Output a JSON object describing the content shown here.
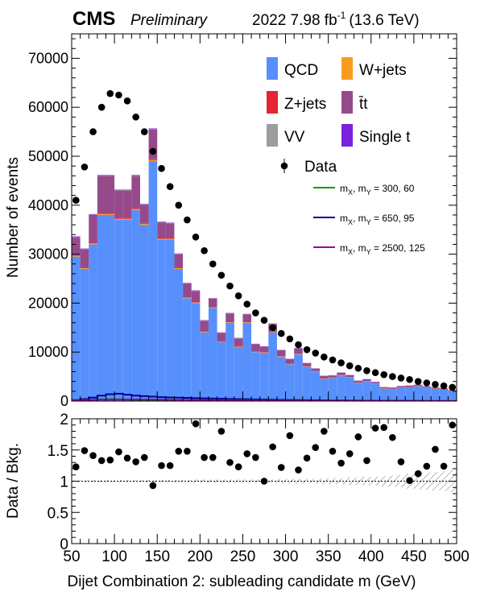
{
  "header": {
    "experiment": "CMS",
    "status": "Preliminary",
    "lumi_prefix": "2022 7.98 fb",
    "lumi_exp": "-1",
    "energy": "(13.6 TeV)"
  },
  "colors": {
    "QCD": "#5790fc",
    "W+jets": "#f89c20",
    "Z+jets": "#e42536",
    "ttbar": "#964a8b",
    "VV": "#9c9ca1",
    "Single t": "#7a21dd",
    "sig1": "#00a000",
    "sig2": "#000099",
    "sig3": "#990099",
    "data": "#000000"
  },
  "chart_data": [
    {
      "type": "bar",
      "stacked": true,
      "xlabel": "Dijet Combination 2: subleading candidate m (GeV)",
      "ylabel": "Number of events",
      "xlim": [
        50,
        500
      ],
      "ylim": [
        0,
        75000
      ],
      "xticks": [
        "50",
        "100",
        "150",
        "200",
        "250",
        "300",
        "350",
        "400",
        "450",
        "500"
      ],
      "yticks": [
        "0",
        "10000",
        "20000",
        "30000",
        "40000",
        "50000",
        "60000",
        "70000"
      ],
      "bin_width": 10,
      "bin_edges_start": [
        50,
        60,
        70,
        80,
        90,
        100,
        110,
        120,
        130,
        140,
        150,
        160,
        170,
        180,
        190,
        200,
        210,
        220,
        230,
        240,
        250,
        260,
        270,
        280,
        290,
        300,
        310,
        320,
        330,
        340,
        350,
        360,
        370,
        380,
        390,
        400,
        410,
        420,
        430,
        440,
        450,
        460,
        470,
        480,
        490
      ],
      "series": [
        {
          "name": "QCD",
          "values": [
            29500,
            27000,
            32000,
            38000,
            38000,
            37000,
            37000,
            39000,
            36000,
            49000,
            33000,
            33000,
            27000,
            21000,
            20000,
            14000,
            19000,
            12000,
            16000,
            11000,
            16000,
            10000,
            9800,
            14000,
            9000,
            7500,
            9500,
            7000,
            6000,
            4500,
            4700,
            5200,
            4800,
            3700,
            4000,
            3500,
            2500,
            2400,
            2700,
            2800,
            3000,
            2700,
            2500,
            2300,
            2000
          ]
        },
        {
          "name": "W+jets",
          "values": [
            150,
            150,
            200,
            200,
            200,
            200,
            200,
            200,
            200,
            200,
            150,
            150,
            150,
            150,
            100,
            100,
            100,
            100,
            100,
            100,
            100,
            100,
            100,
            80,
            80,
            80,
            80,
            60,
            60,
            60,
            60,
            50,
            50,
            50,
            50,
            40,
            40,
            40,
            40,
            40,
            30,
            30,
            30,
            30,
            30
          ]
        },
        {
          "name": "Z+jets",
          "values": [
            150,
            150,
            200,
            200,
            200,
            200,
            200,
            200,
            200,
            200,
            150,
            150,
            150,
            150,
            100,
            100,
            100,
            100,
            100,
            100,
            100,
            100,
            100,
            80,
            80,
            80,
            80,
            60,
            60,
            60,
            60,
            50,
            50,
            50,
            50,
            40,
            40,
            40,
            40,
            40,
            30,
            30,
            30,
            30,
            30
          ]
        },
        {
          "name": "t̄t",
          "values": [
            3700,
            3700,
            5600,
            7600,
            7600,
            5600,
            5600,
            6600,
            3700,
            6100,
            3200,
            3000,
            2700,
            2700,
            2300,
            2200,
            1700,
            1700,
            1700,
            1600,
            1500,
            1400,
            1100,
            1600,
            1200,
            900,
            1100,
            600,
            500,
            500,
            400,
            500,
            400,
            350,
            350,
            300,
            250,
            250,
            250,
            250,
            250,
            200,
            200,
            200,
            150
          ]
        },
        {
          "name": "VV",
          "values": [
            60,
            60,
            80,
            80,
            80,
            80,
            80,
            80,
            80,
            80,
            60,
            60,
            60,
            60,
            50,
            50,
            50,
            50,
            50,
            50,
            40,
            40,
            40,
            40,
            40,
            30,
            30,
            30,
            30,
            30,
            30,
            20,
            20,
            20,
            20,
            20,
            20,
            20,
            20,
            20,
            20,
            20,
            20,
            20,
            20
          ]
        },
        {
          "name": "Single t",
          "values": [
            80,
            80,
            100,
            100,
            100,
            100,
            100,
            100,
            100,
            100,
            80,
            80,
            80,
            80,
            70,
            70,
            70,
            70,
            60,
            60,
            60,
            60,
            60,
            50,
            50,
            50,
            50,
            40,
            40,
            40,
            40,
            30,
            30,
            30,
            30,
            30,
            30,
            30,
            30,
            30,
            30,
            30,
            30,
            30,
            30
          ]
        }
      ],
      "data": {
        "name": "Data",
        "x": [
          55,
          65,
          75,
          85,
          95,
          105,
          115,
          125,
          135,
          145,
          155,
          165,
          175,
          185,
          195,
          205,
          215,
          225,
          235,
          245,
          255,
          265,
          275,
          285,
          295,
          305,
          315,
          325,
          335,
          345,
          355,
          365,
          375,
          385,
          395,
          405,
          415,
          425,
          435,
          445,
          455,
          465,
          475,
          485,
          495
        ],
        "y": [
          41000,
          47800,
          55000,
          60000,
          62800,
          62500,
          61300,
          58000,
          55000,
          51000,
          47500,
          43800,
          40000,
          37000,
          33500,
          30700,
          28000,
          25700,
          23500,
          21500,
          19800,
          18000,
          16500,
          15000,
          13800,
          12700,
          11500,
          10500,
          9800,
          9000,
          8400,
          7800,
          7200,
          6700,
          6200,
          5800,
          5400,
          5000,
          4700,
          4400,
          4000,
          3700,
          3400,
          3100,
          2800
        ]
      },
      "signals": [
        {
          "name": "m_X, m_Y = 300, 60",
          "x": [
            55,
            65,
            75,
            85,
            95,
            105,
            115,
            125,
            135,
            145,
            155,
            165,
            175,
            185,
            195,
            205,
            215,
            225,
            235,
            245,
            255,
            265,
            275,
            285,
            295,
            305,
            315,
            325,
            335,
            345,
            355,
            365,
            375,
            385,
            395,
            405,
            415,
            425,
            435,
            445,
            455,
            465,
            475,
            485,
            495
          ],
          "y": [
            100,
            150,
            250,
            350,
            400,
            350,
            300,
            250,
            200,
            180,
            150,
            130,
            110,
            100,
            90,
            80,
            70,
            60,
            50,
            45,
            40,
            35,
            30,
            25,
            20,
            18,
            16,
            14,
            12,
            10,
            10,
            9,
            8,
            7,
            6,
            5,
            5,
            4,
            4,
            3,
            3,
            3,
            2,
            2,
            2
          ]
        },
        {
          "name": "m_X, m_Y = 650, 95",
          "x": [
            55,
            65,
            75,
            85,
            95,
            105,
            115,
            125,
            135,
            145,
            155,
            165,
            175,
            185,
            195,
            205,
            215,
            225,
            235,
            245,
            255,
            265,
            275,
            285,
            295,
            305,
            315,
            325,
            335,
            345,
            355,
            365,
            375,
            385,
            395,
            405,
            415,
            425,
            435,
            445,
            455,
            465,
            475,
            485,
            495
          ],
          "y": [
            200,
            400,
            700,
            1100,
            1400,
            1500,
            1300,
            1100,
            1000,
            900,
            800,
            750,
            700,
            650,
            600,
            560,
            520,
            480,
            440,
            400,
            360,
            330,
            300,
            270,
            250,
            230,
            210,
            190,
            170,
            150,
            130,
            120,
            110,
            100,
            90,
            80,
            70,
            60,
            50,
            40,
            35,
            30,
            25,
            20,
            15
          ]
        },
        {
          "name": "m_X, m_Y = 2500, 125",
          "x": [
            55,
            65,
            75,
            85,
            95,
            105,
            115,
            125,
            135,
            145,
            155,
            165,
            175,
            185,
            195,
            205,
            215,
            225,
            235,
            245,
            255,
            265,
            275,
            285,
            295,
            305,
            315,
            325,
            335,
            345,
            355,
            365,
            375,
            385,
            395,
            405,
            415,
            425,
            435,
            445,
            455,
            465,
            475,
            485,
            495
          ],
          "y": [
            150,
            200,
            250,
            300,
            300,
            300,
            300,
            300,
            300,
            300,
            280,
            260,
            240,
            230,
            220,
            210,
            200,
            190,
            180,
            170,
            160,
            150,
            140,
            130,
            120,
            110,
            100,
            95,
            90,
            85,
            80,
            75,
            70,
            65,
            60,
            55,
            50,
            45,
            40,
            35,
            30,
            25,
            20,
            15,
            10
          ]
        }
      ]
    },
    {
      "type": "scatter",
      "xlabel": "Dijet Combination 2: subleading candidate m (GeV)",
      "ylabel": "Data / Bkg.",
      "xlim": [
        50,
        500
      ],
      "ylim": [
        0,
        2
      ],
      "xticks": [
        "50",
        "100",
        "150",
        "200",
        "250",
        "300",
        "350",
        "400",
        "450",
        "500"
      ],
      "yticks": [
        "0",
        "0.5",
        "1",
        "1.5",
        "2"
      ],
      "x": [
        55,
        65,
        75,
        85,
        95,
        105,
        115,
        125,
        135,
        145,
        155,
        165,
        175,
        185,
        195,
        205,
        215,
        225,
        235,
        245,
        255,
        265,
        275,
        285,
        295,
        305,
        315,
        325,
        335,
        345,
        355,
        365,
        375,
        385,
        395,
        405,
        415,
        425,
        435,
        445,
        455,
        465,
        475,
        485,
        495
      ],
      "y": [
        1.23,
        1.49,
        1.41,
        1.33,
        1.34,
        1.47,
        1.37,
        1.31,
        1.38,
        0.93,
        1.25,
        1.25,
        1.48,
        1.48,
        1.92,
        1.38,
        1.38,
        1.8,
        1.3,
        1.23,
        1.44,
        1.38,
        1.0,
        1.55,
        1.22,
        1.73,
        1.18,
        1.37,
        1.54,
        1.8,
        1.48,
        1.29,
        1.44,
        1.71,
        1.33,
        1.85,
        1.86,
        1.7,
        1.31,
        1.01,
        1.12,
        1.24,
        1.51,
        1.24,
        1.9
      ],
      "reference_line": 1,
      "uncertainty_band": {
        "x": [
          55,
          65,
          75,
          85,
          95,
          105,
          115,
          125,
          135,
          145,
          155,
          165,
          175,
          185,
          195,
          205,
          215,
          225,
          235,
          245,
          255,
          265,
          275,
          285,
          295,
          305,
          315,
          325,
          335,
          345,
          355,
          365,
          375,
          385,
          395,
          405,
          415,
          425,
          435,
          445,
          455,
          465,
          475,
          485,
          495
        ],
        "half_width": [
          0.02,
          0.02,
          0.02,
          0.02,
          0.02,
          0.02,
          0.02,
          0.02,
          0.02,
          0.02,
          0.02,
          0.02,
          0.02,
          0.02,
          0.03,
          0.03,
          0.03,
          0.03,
          0.03,
          0.03,
          0.03,
          0.03,
          0.03,
          0.03,
          0.04,
          0.04,
          0.04,
          0.04,
          0.04,
          0.05,
          0.05,
          0.05,
          0.06,
          0.06,
          0.07,
          0.07,
          0.08,
          0.09,
          0.1,
          0.12,
          0.13,
          0.14,
          0.15,
          0.16,
          0.18
        ]
      }
    }
  ]
}
